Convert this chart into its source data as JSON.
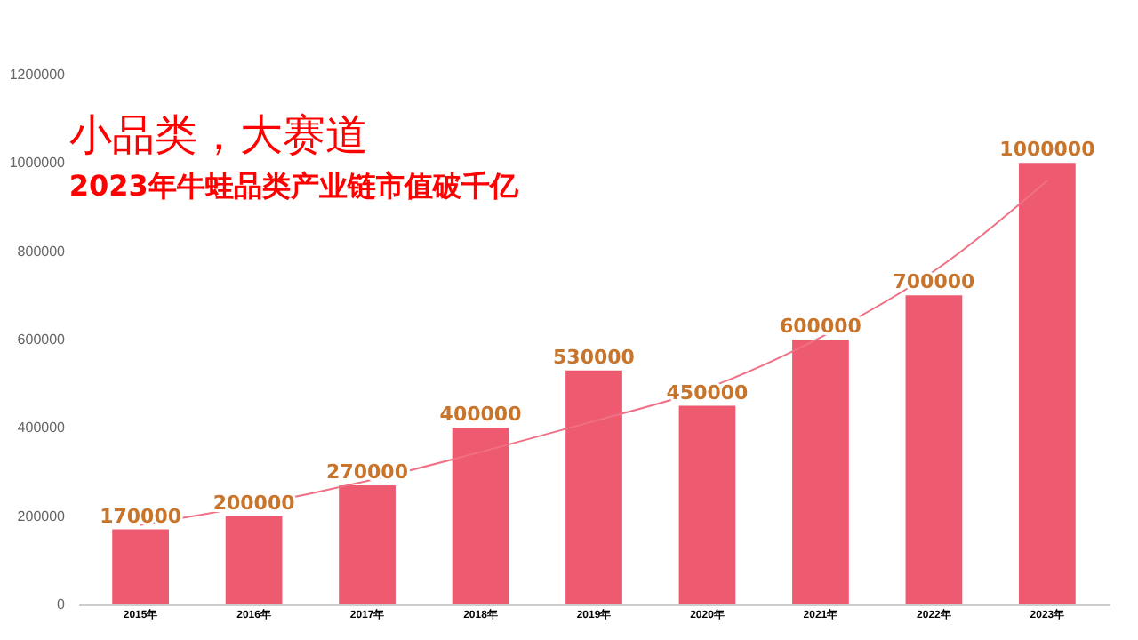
{
  "chart_data": {
    "type": "bar",
    "title": "小品类，大赛道",
    "subtitle": "2023年牛蛙品类产业链市值破千亿",
    "categories": [
      "2015年",
      "2016年",
      "2017年",
      "2018年",
      "2019年",
      "2020年",
      "2021年",
      "2022年",
      "2023年"
    ],
    "series": [
      {
        "color": "#ee5a70",
        "values": [
          170000,
          200000,
          270000,
          400000,
          530000,
          450000,
          600000,
          700000,
          1000000
        ],
        "value_labels": [
          "170000",
          "200000",
          "270000",
          "400000",
          "530000",
          "450000",
          "600000",
          "700000",
          "1000000"
        ]
      },
      {
        "type": "line",
        "color": "#f07085",
        "x": [
          "2015年",
          "2016年",
          "2017年",
          "2018年",
          "2019年",
          "2020年",
          "2021年",
          "2022年",
          "2023年"
        ],
        "values": [
          180000,
          225000,
          280000,
          345000,
          415000,
          490000,
          605000,
          755000,
          960000
        ]
      }
    ],
    "ylim": [
      0,
      1200000
    ],
    "yticks": [
      0,
      200000,
      400000,
      600000,
      800000,
      1000000,
      1200000
    ],
    "grid": false
  }
}
